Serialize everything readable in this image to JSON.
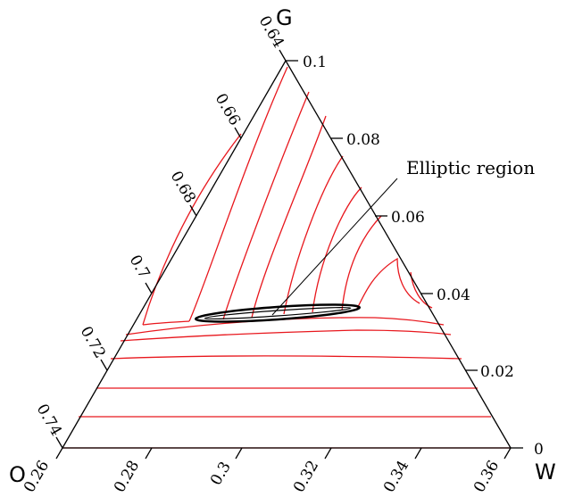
{
  "vertices": {
    "top": "G",
    "left": "O",
    "right": "W"
  },
  "annotation": "Elliptic region",
  "right_edge_ticks": [
    "0.1",
    "0.08",
    "0.06",
    "0.04",
    "0.02",
    "0"
  ],
  "left_edge_ticks": [
    "0.64",
    "0.66",
    "0.68",
    "0.7",
    "0.72",
    "0.74"
  ],
  "bottom_edge_ticks": [
    "0.26",
    "0.28",
    "0.3",
    "0.32",
    "0.34",
    "0.36"
  ],
  "colors": {
    "curves": "#e8171d",
    "ellipse": "#000000",
    "axes": "#000000"
  }
}
